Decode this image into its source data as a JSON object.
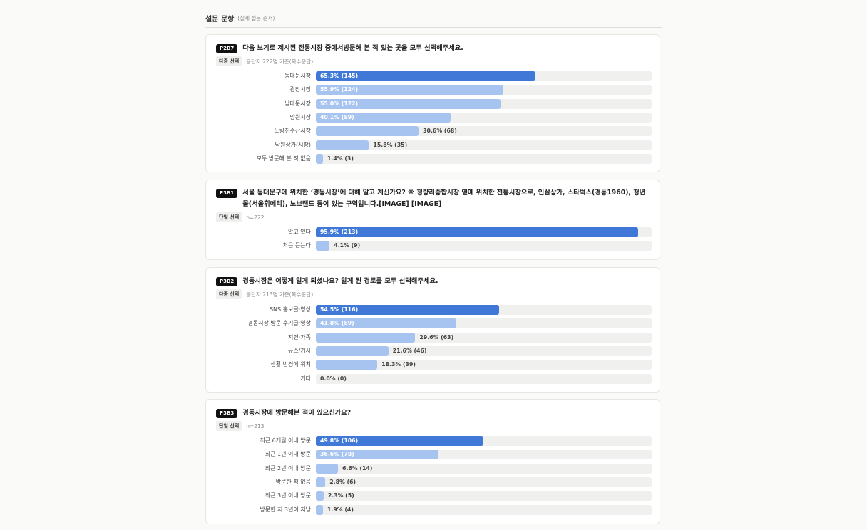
{
  "header": {
    "title": "설문 문항",
    "subtitle": "(실제 설문 순서)"
  },
  "chart_data": [
    {
      "type": "bar",
      "code": "P2B7",
      "question": "다음 보기로 제시된 전통시장 중에서방문해 본 적 있는 곳을 모두 선택해주세요.",
      "answer_type": "다중 선택",
      "note": "응답자 222명 기준(복수응답)",
      "categories": [
        "동대문시장",
        "광장시장",
        "남대문시장",
        "망원시장",
        "노량진수산시장",
        "낙원상가(시장)",
        "모두 방문해 본 적 없음"
      ],
      "values": [
        65.3,
        55.9,
        55.0,
        40.1,
        30.6,
        15.8,
        1.4
      ],
      "value_labels": [
        "65.3% (145)",
        "55.9% (124)",
        "55.0% (122)",
        "40.1% (89)",
        "30.6% (68)",
        "15.8% (35)",
        "1.4% (3)"
      ]
    },
    {
      "type": "bar",
      "code": "P3B1",
      "question": "서울 동대문구에 위치한 ‘경동시장’에 대해 알고 계신가요? ※ 청량리종합시장 옆에 위치한 전통시장으로, 인삼상가, 스타벅스(경동1960), 청년몰(서울휘메리), 노브랜드 등이 있는 구역입니다.[IMAGE] [IMAGE]",
      "answer_type": "단일 선택",
      "note": "n=222",
      "categories": [
        "알고 있다",
        "처음 듣는다"
      ],
      "values": [
        95.9,
        4.1
      ],
      "value_labels": [
        "95.9% (213)",
        "4.1% (9)"
      ]
    },
    {
      "type": "bar",
      "code": "P3B2",
      "question": "경동시장은 어떻게 알게 되셨나요? 알게 된 경로를 모두 선택해주세요.",
      "answer_type": "다중 선택",
      "note": "응답자 213명 기준(복수응답)",
      "categories": [
        "SNS 홍보글·영상",
        "경동시장 방문 후기글·영상",
        "지인·가족",
        "뉴스/기사",
        "생활 반경에 위치",
        "기타"
      ],
      "values": [
        54.5,
        41.8,
        29.6,
        21.6,
        18.3,
        0.0
      ],
      "value_labels": [
        "54.5% (116)",
        "41.8% (89)",
        "29.6% (63)",
        "21.6% (46)",
        "18.3% (39)",
        "0.0% (0)"
      ]
    },
    {
      "type": "bar",
      "code": "P3B3",
      "question": "경동시장에 방문해본 적이 있으신가요?",
      "answer_type": "단일 선택",
      "note": "n=213",
      "categories": [
        "최근 6개월 이내 방문",
        "최근 1년 이내 방문",
        "최근 2년 이내 방문",
        "방문한 적 없음",
        "최근 3년 이내 방문",
        "방문한 지 3년이 지남"
      ],
      "values": [
        49.8,
        36.6,
        6.6,
        2.8,
        2.3,
        1.9
      ],
      "value_labels": [
        "49.8% (106)",
        "36.6% (78)",
        "6.6% (14)",
        "2.8% (6)",
        "2.3% (5)",
        "1.9% (4)"
      ]
    }
  ]
}
